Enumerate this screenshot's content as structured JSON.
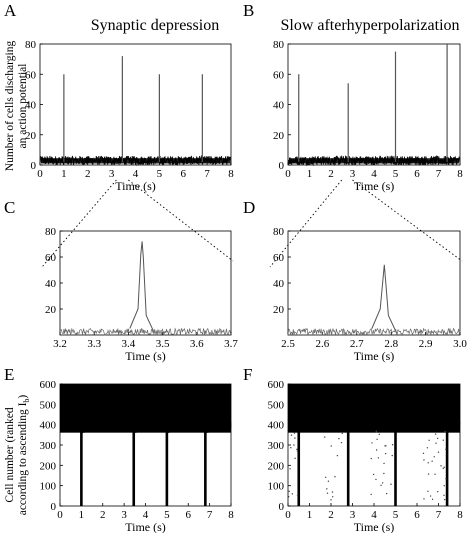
{
  "panel_letters": [
    "A",
    "B",
    "C",
    "D",
    "E",
    "F"
  ],
  "titles": {
    "A": "Synaptic depression",
    "B": "Slow afterhyperpolarization"
  },
  "ylabel_top": [
    "Number of cells discharging",
    "an action potential"
  ],
  "ylabel_bottom": [
    "Cell number (ranked",
    "according to ascending I",
    "b",
    ")"
  ],
  "xlabel": "Time (s)",
  "colors": {
    "trace": "#222222",
    "noise": "#111111",
    "zoom": "#888888",
    "raster": "#000000"
  },
  "chart_data": [
    {
      "panel": "A",
      "type": "line",
      "xlabel": "Time (s)",
      "ylabel": "Number of cells discharging an action potential",
      "xlim": [
        0,
        8
      ],
      "ylim": [
        0,
        80
      ],
      "xticks": [
        0,
        1,
        2,
        3,
        4,
        5,
        6,
        7,
        8
      ],
      "yticks": [
        0,
        20,
        40,
        60,
        80
      ],
      "baseline_range": [
        0,
        6
      ],
      "peaks": [
        {
          "x": 1.0,
          "y": 60
        },
        {
          "x": 3.45,
          "y": 72
        },
        {
          "x": 5.0,
          "y": 60
        },
        {
          "x": 6.8,
          "y": 60
        }
      ]
    },
    {
      "panel": "B",
      "type": "line",
      "xlabel": "Time (s)",
      "xlim": [
        0,
        8
      ],
      "ylim": [
        0,
        80
      ],
      "xticks": [
        0,
        1,
        2,
        3,
        4,
        5,
        6,
        7,
        8
      ],
      "yticks": [
        0,
        20,
        40,
        60,
        80
      ],
      "baseline_range": [
        0,
        6
      ],
      "peaks": [
        {
          "x": 0.5,
          "y": 60
        },
        {
          "x": 2.8,
          "y": 54
        },
        {
          "x": 5.0,
          "y": 75
        },
        {
          "x": 7.4,
          "y": 80
        }
      ]
    },
    {
      "panel": "C",
      "type": "line",
      "xlabel": "Time (s)",
      "xlim": [
        3.2,
        3.7
      ],
      "ylim": [
        0,
        80
      ],
      "xticks": [
        3.2,
        3.3,
        3.4,
        3.5,
        3.6,
        3.7
      ],
      "yticks": [
        20,
        40,
        60,
        80
      ],
      "baseline_range": [
        0,
        5
      ],
      "peaks": [
        {
          "x": 3.44,
          "y": 72
        }
      ]
    },
    {
      "panel": "D",
      "type": "line",
      "xlabel": "Time (s)",
      "xlim": [
        2.5,
        3.0
      ],
      "ylim": [
        0,
        80
      ],
      "xticks": [
        2.5,
        2.6,
        2.7,
        2.8,
        2.9,
        3.0
      ],
      "yticks": [
        20,
        40,
        60,
        80
      ],
      "baseline_range": [
        0,
        5
      ],
      "peaks": [
        {
          "x": 2.78,
          "y": 54
        }
      ]
    },
    {
      "panel": "E",
      "type": "scatter",
      "xlabel": "Time (s)",
      "ylabel": "Cell number (ranked according to ascending Ib)",
      "xlim": [
        0,
        8
      ],
      "ylim": [
        0,
        600
      ],
      "xticks": [
        0,
        1,
        2,
        3,
        4,
        5,
        6,
        7,
        8
      ],
      "yticks": [
        0,
        100,
        200,
        300,
        400,
        500,
        600
      ],
      "dense_band": [
        400,
        600
      ],
      "bursts": [
        1.0,
        3.45,
        5.0,
        6.8
      ]
    },
    {
      "panel": "F",
      "type": "scatter",
      "xlabel": "Time (s)",
      "xlim": [
        0,
        8
      ],
      "ylim": [
        0,
        600
      ],
      "xticks": [
        0,
        1,
        2,
        3,
        4,
        5,
        6,
        7,
        8
      ],
      "yticks": [
        0,
        100,
        200,
        300,
        400,
        500,
        600
      ],
      "dense_band": [
        400,
        600
      ],
      "bursts": [
        0.5,
        2.8,
        5.0,
        7.4
      ]
    }
  ]
}
